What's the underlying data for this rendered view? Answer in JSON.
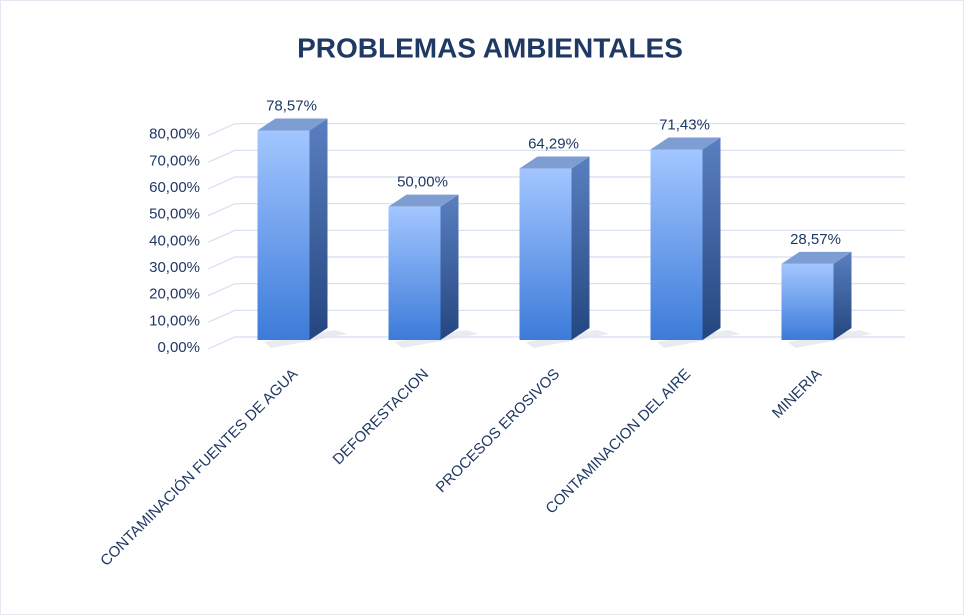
{
  "chart_data": {
    "type": "bar3d",
    "title": "PROBLEMAS AMBIENTALES",
    "categories": [
      "CONTAMINACIÓN FUENTES DE AGUA",
      "DEFORESTACION",
      "PROCESOS EROSIVOS",
      "CONTAMINACION DEL AIRE",
      "MINERIA"
    ],
    "values": [
      78.57,
      50,
      64.29,
      71.43,
      28.57
    ],
    "value_labels": [
      "78,57%",
      "50,00%",
      "64,29%",
      "71,43%",
      "28,57%"
    ],
    "color": "#5b93e6",
    "ylim": [
      0,
      90
    ],
    "yticks": [
      {
        "value": 0,
        "label": "0,00%"
      },
      {
        "value": 10,
        "label": "10,00%"
      },
      {
        "value": 20,
        "label": "20,00%"
      },
      {
        "value": 30,
        "label": "30,00%"
      },
      {
        "value": 40,
        "label": "40,00%"
      },
      {
        "value": 50,
        "label": "50,00%"
      },
      {
        "value": 60,
        "label": "60,00%"
      },
      {
        "value": 70,
        "label": "70,00%"
      },
      {
        "value": 80,
        "label": "80,00%"
      }
    ],
    "grid": true
  }
}
